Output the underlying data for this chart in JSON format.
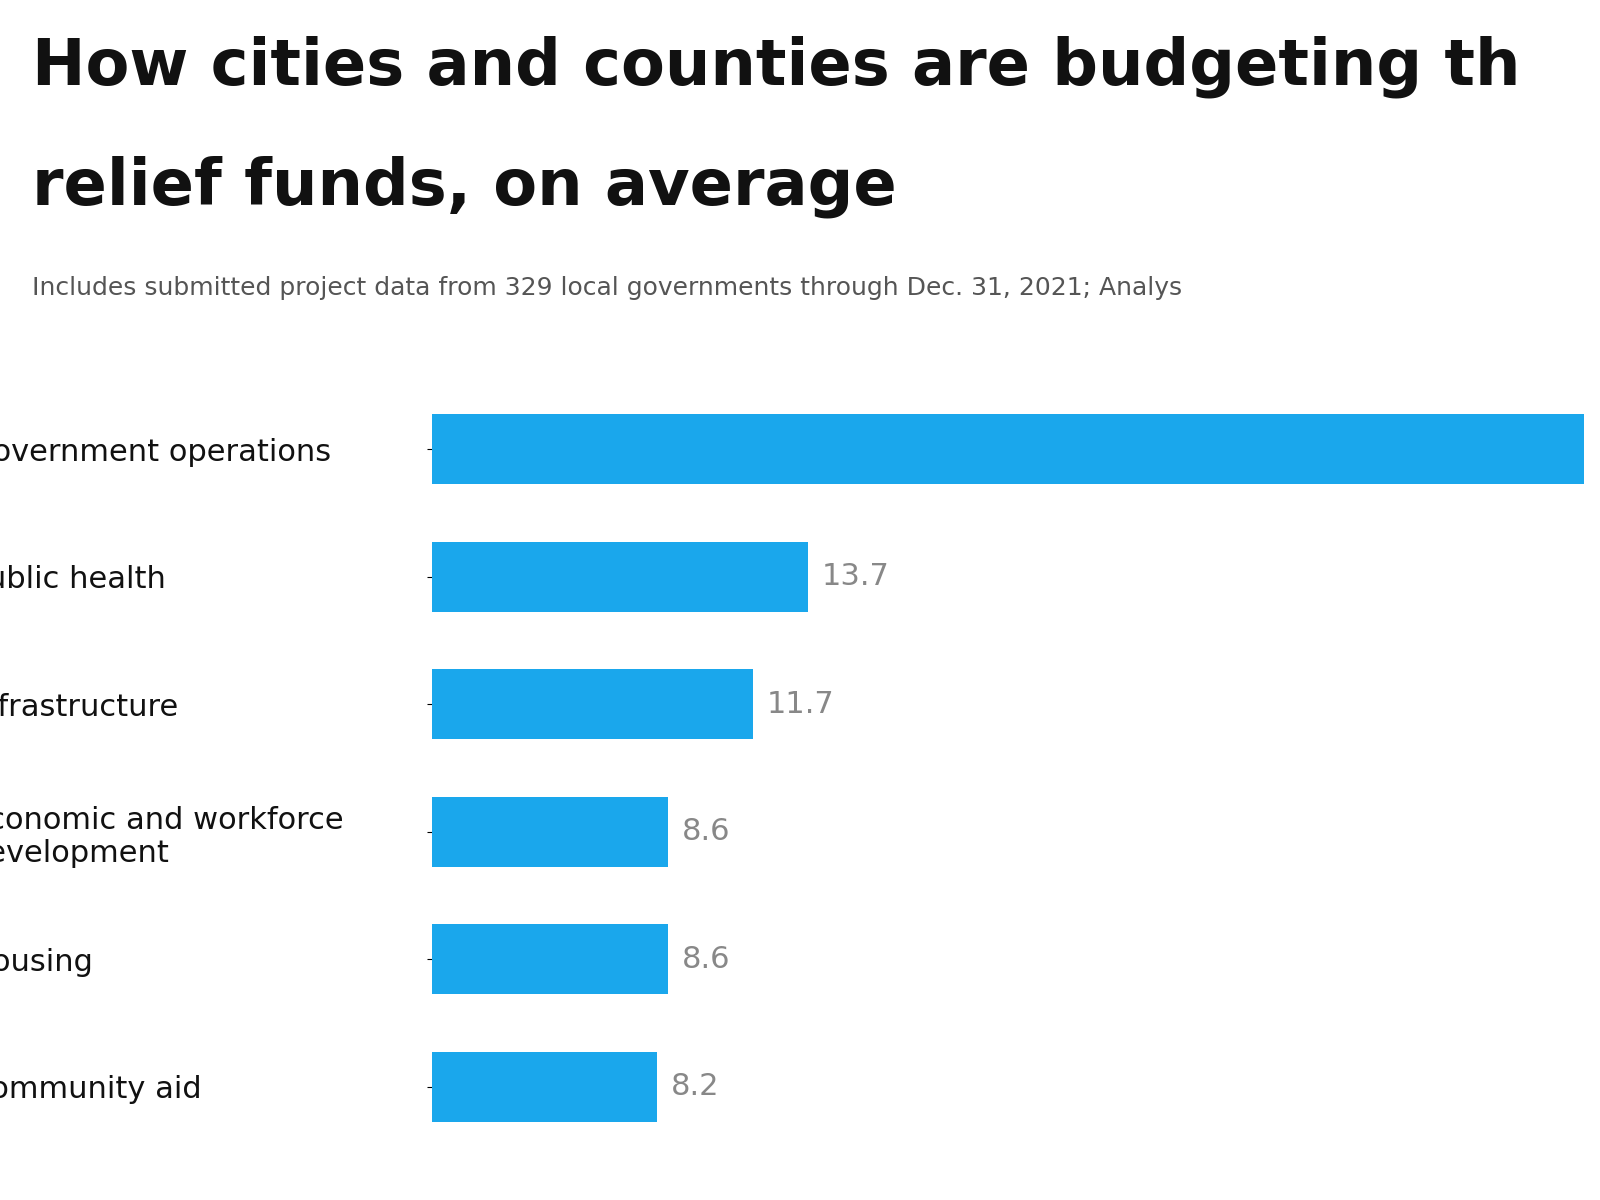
{
  "title_line1": "How cities and counties are budgeting th",
  "title_line2": "relief funds, on average",
  "subtitle": "Includes submitted project data from 329 local governments through Dec. 31, 2021; Analys",
  "categories": [
    "Government operations",
    "Public health",
    "Infrastructure",
    "Economic and workforce\ndevelopment",
    "Housing",
    "Community aid"
  ],
  "values": [
    42.0,
    13.7,
    11.7,
    8.6,
    8.6,
    8.2
  ],
  "bar_color": "#1aa7ec",
  "label_color": "#888888",
  "title_color": "#111111",
  "subtitle_color": "#555555",
  "background_color": "#ffffff",
  "show_value_labels": [
    false,
    true,
    true,
    true,
    true,
    true
  ],
  "value_labels": [
    "",
    "13.7",
    "11.7",
    "8.6",
    "8.6",
    "8.2"
  ],
  "xlim": [
    0,
    42
  ],
  "bar_height": 0.55,
  "title_fontsize": 46,
  "subtitle_fontsize": 18,
  "category_fontsize": 22,
  "value_fontsize": 22
}
